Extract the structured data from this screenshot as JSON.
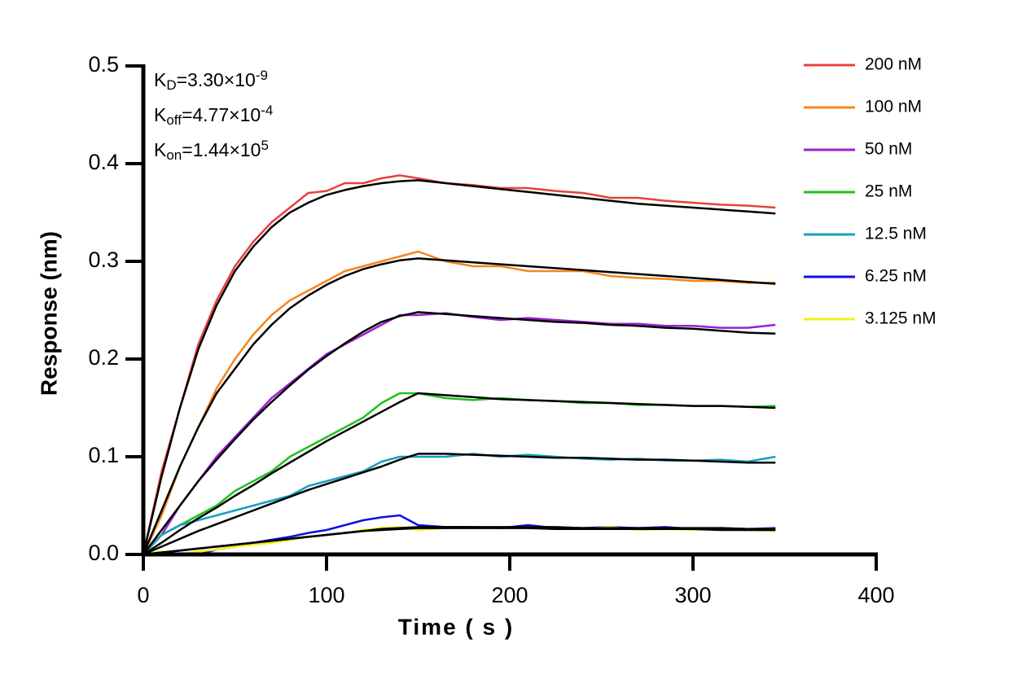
{
  "chart_data": {
    "type": "line",
    "x": [
      0,
      10,
      20,
      30,
      40,
      50,
      60,
      70,
      80,
      90,
      100,
      110,
      120,
      130,
      140,
      150,
      165,
      180,
      195,
      210,
      225,
      240,
      255,
      270,
      285,
      300,
      315,
      330,
      345
    ],
    "xlim": [
      0,
      400
    ],
    "xticks": [
      0,
      100,
      200,
      300,
      400
    ],
    "ylim": [
      0,
      0.5
    ],
    "yticks": [
      {
        "value": 0,
        "label": "0.0"
      },
      0.1,
      0.2,
      0.3,
      0.4,
      0.5
    ],
    "x_label": "Time ( s )",
    "y_label": "Response (nm)",
    "fit_color": "#000000",
    "annotations": [
      {
        "k": "K",
        "sub": "D",
        "eq": "=3.30×10",
        "sup": "-9"
      },
      {
        "k": "K",
        "sub": "off",
        "eq": "=4.77×10",
        "sup": "-4"
      },
      {
        "k": "K",
        "sub": "on",
        "eq": "=1.44×10",
        "sup": "5"
      }
    ],
    "series": [
      {
        "name": "200 nM",
        "color": "#e8403c",
        "values": [
          0,
          0.085,
          0.15,
          0.215,
          0.26,
          0.295,
          0.32,
          0.34,
          0.355,
          0.37,
          0.372,
          0.38,
          0.38,
          0.385,
          0.388,
          0.385,
          0.38,
          0.378,
          0.375,
          0.375,
          0.372,
          0.37,
          0.365,
          0.365,
          0.362,
          0.36,
          0.358,
          0.357,
          0.355
        ],
        "fit": [
          0,
          0.08,
          0.15,
          0.21,
          0.255,
          0.29,
          0.315,
          0.335,
          0.35,
          0.36,
          0.368,
          0.373,
          0.377,
          0.38,
          0.382,
          0.383,
          0.38,
          0.377,
          0.374,
          0.371,
          0.368,
          0.365,
          0.362,
          0.359,
          0.357,
          0.355,
          0.353,
          0.351,
          0.349
        ]
      },
      {
        "name": "100 nM",
        "color": "#f7851c",
        "values": [
          0,
          0.04,
          0.09,
          0.13,
          0.17,
          0.2,
          0.225,
          0.245,
          0.26,
          0.27,
          0.28,
          0.29,
          0.295,
          0.3,
          0.305,
          0.31,
          0.3,
          0.295,
          0.295,
          0.29,
          0.29,
          0.29,
          0.285,
          0.283,
          0.282,
          0.28,
          0.28,
          0.278,
          0.278
        ],
        "fit": [
          0,
          0.045,
          0.09,
          0.13,
          0.165,
          0.19,
          0.215,
          0.235,
          0.252,
          0.265,
          0.276,
          0.285,
          0.292,
          0.297,
          0.301,
          0.303,
          0.301,
          0.299,
          0.297,
          0.295,
          0.293,
          0.291,
          0.289,
          0.287,
          0.285,
          0.283,
          0.281,
          0.279,
          0.277
        ]
      },
      {
        "name": "50 nM",
        "color": "#9b1fd6",
        "values": [
          0,
          0.02,
          0.05,
          0.075,
          0.1,
          0.12,
          0.14,
          0.16,
          0.175,
          0.19,
          0.205,
          0.215,
          0.225,
          0.235,
          0.245,
          0.245,
          0.247,
          0.243,
          0.24,
          0.242,
          0.24,
          0.238,
          0.236,
          0.236,
          0.234,
          0.234,
          0.232,
          0.232,
          0.235
        ],
        "fit": [
          0,
          0.025,
          0.05,
          0.075,
          0.097,
          0.118,
          0.138,
          0.156,
          0.173,
          0.189,
          0.203,
          0.216,
          0.228,
          0.238,
          0.244,
          0.248,
          0.246,
          0.244,
          0.242,
          0.24,
          0.238,
          0.237,
          0.235,
          0.234,
          0.232,
          0.231,
          0.229,
          0.227,
          0.226
        ]
      },
      {
        "name": "25 nM",
        "color": "#1ec21e",
        "values": [
          0,
          0.02,
          0.03,
          0.04,
          0.05,
          0.065,
          0.075,
          0.085,
          0.1,
          0.11,
          0.12,
          0.13,
          0.14,
          0.155,
          0.165,
          0.165,
          0.16,
          0.158,
          0.16,
          0.158,
          0.157,
          0.155,
          0.155,
          0.153,
          0.153,
          0.152,
          0.152,
          0.151,
          0.152
        ],
        "fit": [
          0,
          0.012,
          0.025,
          0.037,
          0.048,
          0.06,
          0.071,
          0.083,
          0.094,
          0.105,
          0.116,
          0.126,
          0.136,
          0.146,
          0.156,
          0.165,
          0.163,
          0.161,
          0.159,
          0.158,
          0.157,
          0.156,
          0.155,
          0.154,
          0.153,
          0.152,
          0.152,
          0.151,
          0.15
        ]
      },
      {
        "name": "12.5 nM",
        "color": "#1a9fbf",
        "values": [
          0,
          0.02,
          0.03,
          0.035,
          0.04,
          0.045,
          0.05,
          0.055,
          0.06,
          0.07,
          0.075,
          0.08,
          0.085,
          0.095,
          0.1,
          0.1,
          0.1,
          0.103,
          0.1,
          0.102,
          0.1,
          0.098,
          0.097,
          0.098,
          0.096,
          0.096,
          0.097,
          0.095,
          0.1
        ],
        "fit": [
          0,
          0.008,
          0.016,
          0.024,
          0.031,
          0.038,
          0.045,
          0.052,
          0.059,
          0.066,
          0.072,
          0.078,
          0.084,
          0.09,
          0.097,
          0.103,
          0.103,
          0.102,
          0.101,
          0.1,
          0.099,
          0.099,
          0.098,
          0.097,
          0.097,
          0.096,
          0.095,
          0.094,
          0.094
        ]
      },
      {
        "name": "6.25 nM",
        "color": "#1010e0",
        "values": [
          0,
          0,
          0,
          0,
          0.005,
          0.008,
          0.012,
          0.015,
          0.018,
          0.022,
          0.025,
          0.03,
          0.035,
          0.038,
          0.04,
          0.03,
          0.028,
          0.028,
          0.027,
          0.03,
          0.027,
          0.027,
          0.028,
          0.027,
          0.028,
          0.026,
          0.027,
          0.026,
          0.027
        ],
        "fit": [
          0,
          0.002,
          0.004,
          0.006,
          0.008,
          0.01,
          0.012,
          0.014,
          0.016,
          0.018,
          0.02,
          0.022,
          0.024,
          0.026,
          0.027,
          0.028,
          0.028,
          0.028,
          0.028,
          0.028,
          0.028,
          0.027,
          0.027,
          0.027,
          0.027,
          0.027,
          0.027,
          0.026,
          0.026
        ]
      },
      {
        "name": "3.125 nM",
        "color": "#f2f21a",
        "values": [
          0,
          0.003,
          0,
          0.003,
          0.005,
          0.008,
          0.01,
          0.012,
          0.015,
          0.018,
          0.02,
          0.022,
          0.025,
          0.027,
          0.028,
          0.025,
          0.027,
          0.028,
          0.027,
          0.028,
          0.027,
          0.026,
          0.028,
          0.025,
          0.026,
          0.025,
          0.026,
          0.025,
          0.024
        ],
        "fit": [
          0,
          0.002,
          0.004,
          0.006,
          0.008,
          0.01,
          0.012,
          0.014,
          0.016,
          0.018,
          0.02,
          0.022,
          0.024,
          0.025,
          0.026,
          0.027,
          0.027,
          0.027,
          0.027,
          0.027,
          0.026,
          0.026,
          0.026,
          0.026,
          0.026,
          0.026,
          0.025,
          0.025,
          0.025
        ]
      }
    ]
  }
}
